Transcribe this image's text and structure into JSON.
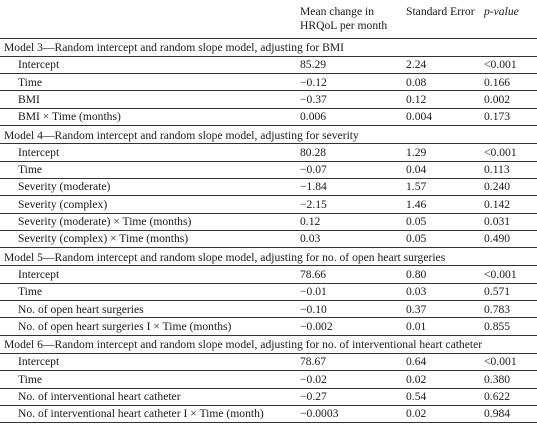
{
  "header": {
    "col_estimate": "Mean change in HRQoL per month",
    "col_se": "Standard Error",
    "col_p": "p-value"
  },
  "sections": [
    {
      "title": "Model 3—Random intercept and random slope model, adjusting for BMI",
      "rows": [
        {
          "label": "Intercept",
          "estimate": "85.29",
          "se": "2.24",
          "p": "<0.001"
        },
        {
          "label": "Time",
          "estimate": "−0.12",
          "se": "0.08",
          "p": "0.166"
        },
        {
          "label": "BMI",
          "estimate": "−0.37",
          "se": "0.12",
          "p": "0.002"
        },
        {
          "label": "BMI × Time (months)",
          "estimate": "0.006",
          "se": "0.004",
          "p": "0.173"
        }
      ]
    },
    {
      "title": "Model 4—Random intercept and random slope model, adjusting for severity",
      "rows": [
        {
          "label": "Intercept",
          "estimate": "80.28",
          "se": "1.29",
          "p": "<0.001"
        },
        {
          "label": "Time",
          "estimate": "−0.07",
          "se": "0.04",
          "p": "0.113"
        },
        {
          "label": "Severity (moderate)",
          "estimate": "−1.84",
          "se": "1.57",
          "p": "0.240"
        },
        {
          "label": "Severity (complex)",
          "estimate": "−2.15",
          "se": "1.46",
          "p": "0.142"
        },
        {
          "label": "Severity (moderate) × Time (months)",
          "estimate": "0.12",
          "se": "0.05",
          "p": "0.031"
        },
        {
          "label": "Severity (complex) × Time (months)",
          "estimate": "0.03",
          "se": "0.05",
          "p": "0.490"
        }
      ]
    },
    {
      "title": "Model 5—Random intercept and random slope model, adjusting for no. of open heart surgeries",
      "rows": [
        {
          "label": "Intercept",
          "estimate": "78.66",
          "se": "0.80",
          "p": "<0.001"
        },
        {
          "label": "Time",
          "estimate": "−0.01",
          "se": "0.03",
          "p": "0.571"
        },
        {
          "label": "No. of open heart surgeries",
          "estimate": "−0.10",
          "se": "0.37",
          "p": "0.783"
        },
        {
          "label": "No. of open heart surgeries I × Time (months)",
          "estimate": "−0.002",
          "se": "0.01",
          "p": "0.855"
        }
      ]
    },
    {
      "title": "Model 6—Random intercept and random slope model, adjusting for no. of interventional heart catheter",
      "rows": [
        {
          "label": "Intercept",
          "estimate": "78.67",
          "se": "0.64",
          "p": "<0.001"
        },
        {
          "label": "Time",
          "estimate": "−0.02",
          "se": "0.02",
          "p": "0.380"
        },
        {
          "label": "No. of interventional heart catheter",
          "estimate": "−0.27",
          "se": "0.54",
          "p": "0.622"
        },
        {
          "label": "No. of interventional heart catheter I × Time (month)",
          "estimate": "−0.0003",
          "se": "0.02",
          "p": "0.984"
        }
      ]
    }
  ]
}
